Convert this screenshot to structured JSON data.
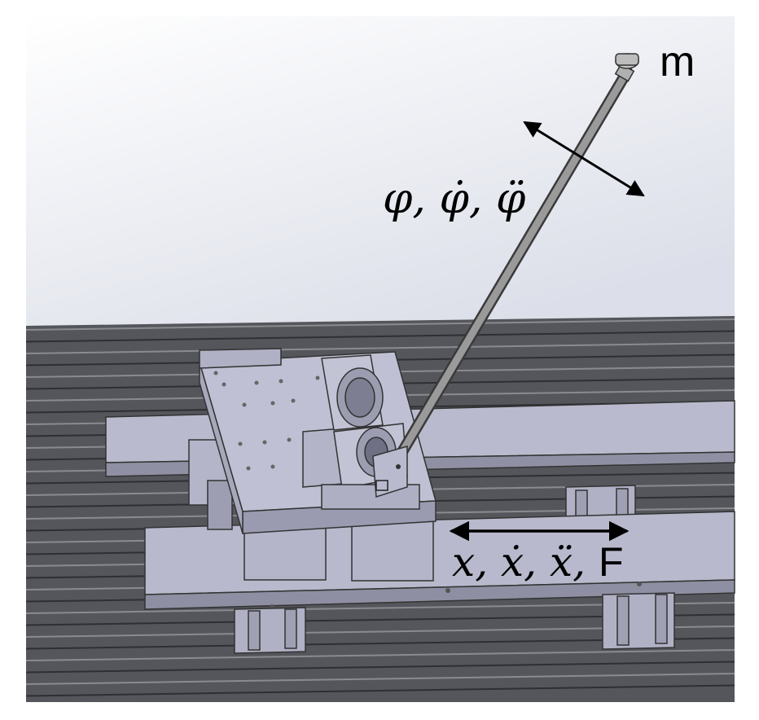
{
  "labels": {
    "mass": "m",
    "pendulum_angle": "φ, φ̇, φ̈",
    "cart_position": "x, ẋ, ẍ,",
    "force": "F"
  },
  "colors": {
    "sky_top": "#ffffff",
    "sky_bottom": "#dfe1ec",
    "rail": "#6e6f75",
    "rail_dark": "#3b3c40",
    "part_face": "#b7b8cc",
    "part_side": "#9a9bb0",
    "pendulum_rod": "#8e8e8e",
    "arrow": "#000000"
  }
}
